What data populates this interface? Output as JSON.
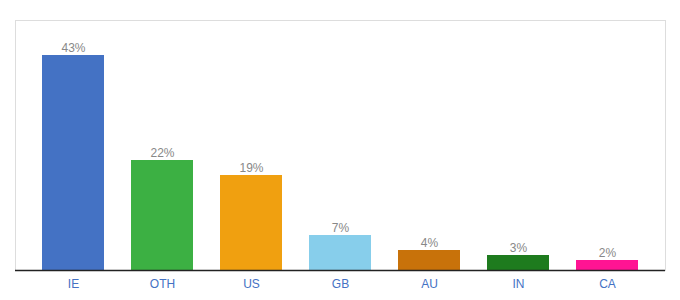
{
  "chart_data": {
    "type": "bar",
    "categories": [
      "IE",
      "OTH",
      "US",
      "GB",
      "AU",
      "IN",
      "CA"
    ],
    "values": [
      43,
      22,
      19,
      7,
      4,
      3,
      2
    ],
    "value_labels": [
      "43%",
      "22%",
      "19%",
      "7%",
      "4%",
      "3%",
      "2%"
    ],
    "colors": [
      "#4472c4",
      "#3cb043",
      "#f0a010",
      "#87ceeb",
      "#c8720a",
      "#1e7b1e",
      "#ff1493"
    ],
    "ylim": [
      0,
      50
    ],
    "data_labels": true,
    "tick_labels": "x",
    "grid": false
  }
}
